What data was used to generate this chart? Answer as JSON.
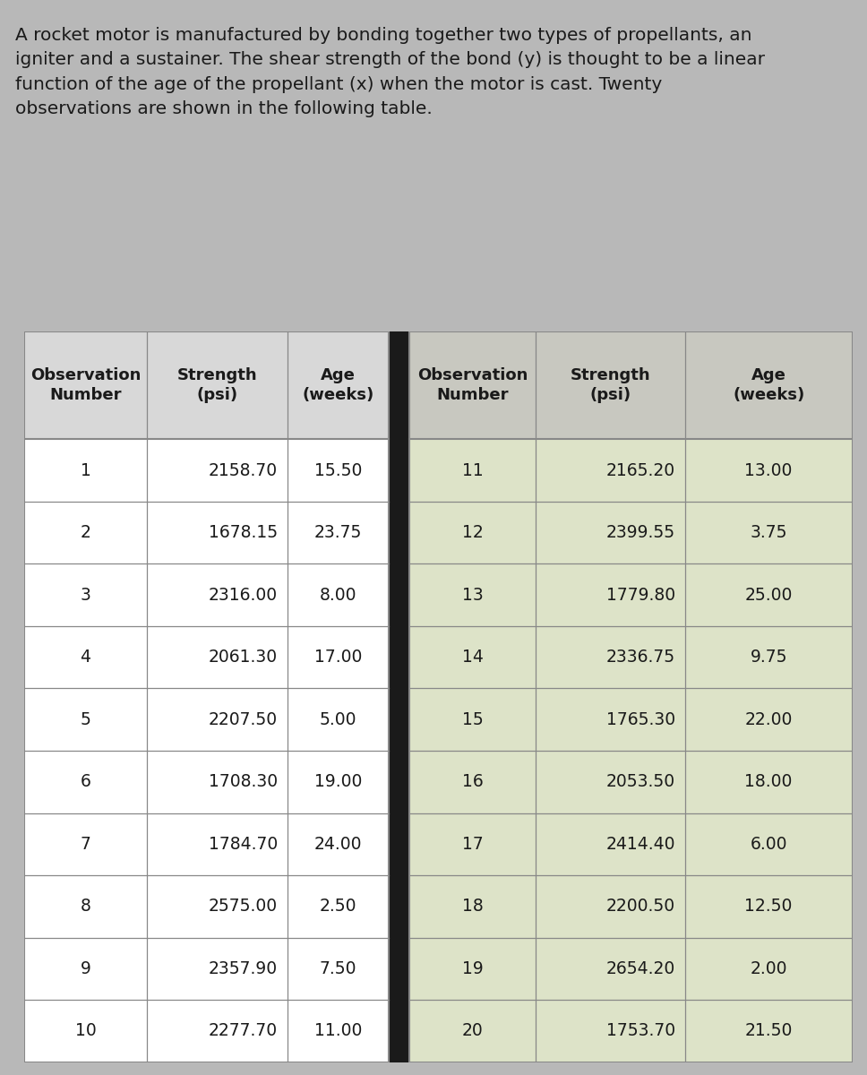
{
  "description_text": "A rocket motor is manufactured by bonding together two types of propellants, an\nigniter and a sustainer. The shear strength of the bond (y) is thought to be a linear\nfunction of the age of the propellant (x) when the motor is cast. Twenty\nobservations are shown in the following table.",
  "data": [
    [
      1,
      2158.7,
      15.5,
      11,
      2165.2,
      13.0
    ],
    [
      2,
      1678.15,
      23.75,
      12,
      2399.55,
      3.75
    ],
    [
      3,
      2316.0,
      8.0,
      13,
      1779.8,
      25.0
    ],
    [
      4,
      2061.3,
      17.0,
      14,
      2336.75,
      9.75
    ],
    [
      5,
      2207.5,
      5.0,
      15,
      1765.3,
      22.0
    ],
    [
      6,
      1708.3,
      19.0,
      16,
      2053.5,
      18.0
    ],
    [
      7,
      1784.7,
      24.0,
      17,
      2414.4,
      6.0
    ],
    [
      8,
      2575.0,
      2.5,
      18,
      2200.5,
      12.5
    ],
    [
      9,
      2357.9,
      7.5,
      19,
      2654.2,
      2.0
    ],
    [
      10,
      2277.7,
      11.0,
      20,
      1753.7,
      21.5
    ]
  ],
  "bg_color_left": "#ffffff",
  "bg_color_right": "#dde3c8",
  "header_bg_left": "#d8d8d8",
  "header_bg_right": "#c8c8c0",
  "text_color": "#1a1a1a",
  "border_color": "#888888",
  "divider_color": "#1a1a1a",
  "desc_fontsize": 14.5,
  "header_fontsize": 13,
  "cell_fontsize": 13.5,
  "fig_bg": "#b8b8b8"
}
